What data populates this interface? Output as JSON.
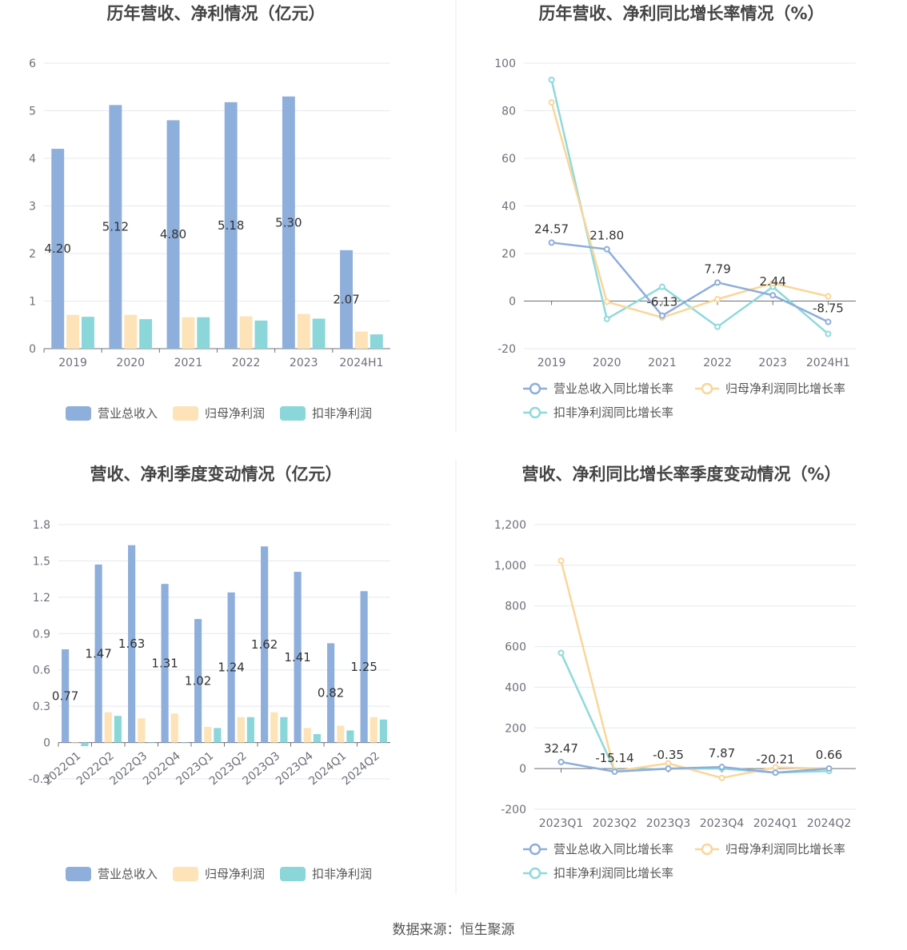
{
  "source": "数据来源：恒生聚源",
  "colors": {
    "revenue": "#8eaedb",
    "parent": "#fde3b7",
    "deducted": "#8ad6d9",
    "revenueLine": "#8eaedb",
    "parentLine": "#fad699",
    "deductedLine": "#8fd9dc"
  },
  "chart_data": [
    {
      "type": "bar",
      "title": "历年营收、净利情况（亿元）",
      "categories": [
        "2019",
        "2020",
        "2021",
        "2022",
        "2023",
        "2024H1"
      ],
      "yticks": [
        "0",
        "1",
        "2",
        "3",
        "4",
        "5",
        "6"
      ],
      "ylim": [
        0,
        6
      ],
      "series": [
        {
          "name": "营业总收入",
          "values": [
            4.2,
            5.12,
            4.8,
            5.18,
            5.3,
            2.07
          ],
          "labels": [
            "4.20",
            "5.12",
            "4.80",
            "5.18",
            "5.30",
            "2.07"
          ]
        },
        {
          "name": "归母净利润",
          "values": [
            0.71,
            0.71,
            0.66,
            0.68,
            0.73,
            0.36
          ]
        },
        {
          "name": "扣非净利润",
          "values": [
            0.67,
            0.62,
            0.66,
            0.59,
            0.63,
            0.3
          ]
        }
      ],
      "legend": "bottom"
    },
    {
      "type": "line",
      "title": "历年营收、净利同比增长率情况（%）",
      "categories": [
        "2019",
        "2020",
        "2021",
        "2022",
        "2023",
        "2024H1"
      ],
      "yticks": [
        "-20",
        "0",
        "20",
        "40",
        "60",
        "80",
        "100"
      ],
      "ylim": [
        -20,
        100
      ],
      "series": [
        {
          "name": "营业总收入同比增长率",
          "values": [
            24.57,
            21.8,
            -6.13,
            7.79,
            2.44,
            -8.75
          ],
          "labels": [
            "24.57",
            "21.80",
            "-6.13",
            "7.79",
            "2.44",
            "-8.75"
          ]
        },
        {
          "name": "归母净利润同比增长率",
          "values": [
            83.5,
            -0.3,
            -6.9,
            0.8,
            7.5,
            2.0
          ]
        },
        {
          "name": "扣非净利润同比增长率",
          "values": [
            93,
            -7.5,
            6.0,
            -10.8,
            6.0,
            -13.8
          ]
        }
      ],
      "legend": "bottom"
    },
    {
      "type": "bar",
      "title": "营收、净利季度变动情况（亿元）",
      "categories": [
        "2022Q1",
        "2022Q2",
        "2022Q3",
        "2022Q4",
        "2023Q1",
        "2023Q2",
        "2023Q3",
        "2023Q4",
        "2024Q1",
        "2024Q2"
      ],
      "yticks": [
        "-0.3",
        "0",
        "0.3",
        "0.6",
        "0.9",
        "1.2",
        "1.5",
        "1.8"
      ],
      "ylim": [
        -0.3,
        1.8
      ],
      "series": [
        {
          "name": "营业总收入",
          "values": [
            0.77,
            1.47,
            1.63,
            1.31,
            1.02,
            1.24,
            1.62,
            1.41,
            0.82,
            1.25
          ],
          "labels": [
            "0.77",
            "1.47",
            "1.63",
            "1.31",
            "1.02",
            "1.24",
            "1.62",
            "1.41",
            "0.82",
            "1.25"
          ]
        },
        {
          "name": "归母净利润",
          "values": [
            -0.01,
            0.25,
            0.2,
            0.24,
            0.13,
            0.21,
            0.25,
            0.12,
            0.14,
            0.21
          ]
        },
        {
          "name": "扣非净利润",
          "values": [
            -0.03,
            0.22,
            0.0,
            0.0,
            0.12,
            0.21,
            0.21,
            0.07,
            0.1,
            0.19
          ]
        }
      ],
      "legend": "bottom"
    },
    {
      "type": "line",
      "title": "营收、净利同比增长率季度变动情况（%）",
      "categories": [
        "2023Q1",
        "2023Q2",
        "2023Q3",
        "2023Q4",
        "2024Q1",
        "2024Q2"
      ],
      "yticks": [
        "-200",
        "0",
        "200",
        "400",
        "600",
        "800",
        "1,000",
        "1,200"
      ],
      "ylim": [
        -200,
        1200
      ],
      "series": [
        {
          "name": "营业总收入同比增长率",
          "values": [
            32.47,
            -15.14,
            -0.35,
            7.87,
            -20.21,
            0.66
          ],
          "labels": [
            "32.47",
            "-15.14",
            "-0.35",
            "7.87",
            "-20.21",
            "0.66"
          ]
        },
        {
          "name": "归母净利润同比增长率",
          "values": [
            1022,
            -13,
            26,
            -46,
            6,
            0
          ]
        },
        {
          "name": "扣非净利润同比增长率",
          "values": [
            569,
            -10,
            0,
            0,
            -20,
            -12
          ]
        }
      ],
      "legend": "bottom"
    }
  ]
}
